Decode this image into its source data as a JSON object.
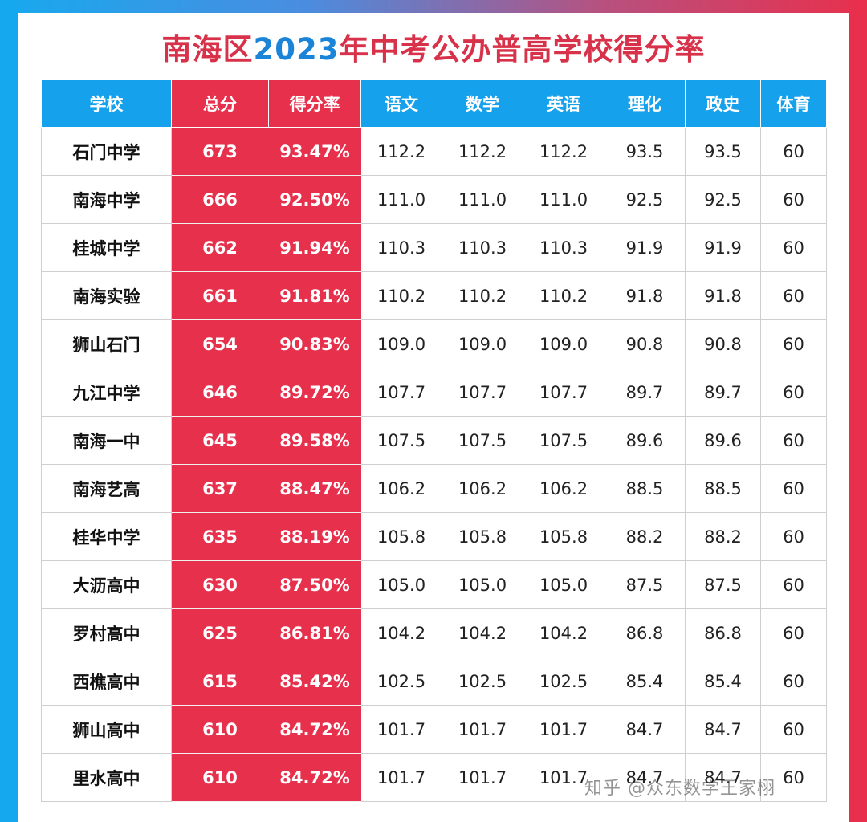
{
  "title_prefix": "南海区",
  "title_year": "2023",
  "title_suffix": "年中考公办普高学校得分率",
  "headers": [
    "学校",
    "总分",
    "得分率",
    "语文",
    "数学",
    "英语",
    "理化",
    "政史",
    "体育"
  ],
  "rows": [
    [
      "石门中学",
      "673",
      "93.47%",
      "112.2",
      "112.2",
      "112.2",
      "93.5",
      "93.5",
      "60"
    ],
    [
      "南海中学",
      "666",
      "92.50%",
      "111.0",
      "111.0",
      "111.0",
      "92.5",
      "92.5",
      "60"
    ],
    [
      "桂城中学",
      "662",
      "91.94%",
      "110.3",
      "110.3",
      "110.3",
      "91.9",
      "91.9",
      "60"
    ],
    [
      "南海实验",
      "661",
      "91.81%",
      "110.2",
      "110.2",
      "110.2",
      "91.8",
      "91.8",
      "60"
    ],
    [
      "狮山石门",
      "654",
      "90.83%",
      "109.0",
      "109.0",
      "109.0",
      "90.8",
      "90.8",
      "60"
    ],
    [
      "九江中学",
      "646",
      "89.72%",
      "107.7",
      "107.7",
      "107.7",
      "89.7",
      "89.7",
      "60"
    ],
    [
      "南海一中",
      "645",
      "89.58%",
      "107.5",
      "107.5",
      "107.5",
      "89.6",
      "89.6",
      "60"
    ],
    [
      "南海艺高",
      "637",
      "88.47%",
      "106.2",
      "106.2",
      "106.2",
      "88.5",
      "88.5",
      "60"
    ],
    [
      "桂华中学",
      "635",
      "88.19%",
      "105.8",
      "105.8",
      "105.8",
      "88.2",
      "88.2",
      "60"
    ],
    [
      "大沥高中",
      "630",
      "87.50%",
      "105.0",
      "105.0",
      "105.0",
      "87.5",
      "87.5",
      "60"
    ],
    [
      "罗村高中",
      "625",
      "86.81%",
      "104.2",
      "104.2",
      "104.2",
      "86.8",
      "86.8",
      "60"
    ],
    [
      "西樵高中",
      "615",
      "85.42%",
      "102.5",
      "102.5",
      "102.5",
      "85.4",
      "85.4",
      "60"
    ],
    [
      "狮山高中",
      "610",
      "84.72%",
      "101.7",
      "101.7",
      "101.7",
      "84.7",
      "84.7",
      "60"
    ],
    [
      "里水高中",
      "610",
      "84.72%",
      "101.7",
      "101.7",
      "101.7",
      "84.7",
      "84.7",
      "60"
    ]
  ],
  "watermark": "知乎 @众东数学王家栩",
  "colors": {
    "header_blue": "#16a1ec",
    "accent_red": "#e6304c",
    "title_red": "#d8324a",
    "title_blue": "#1a84d9"
  }
}
